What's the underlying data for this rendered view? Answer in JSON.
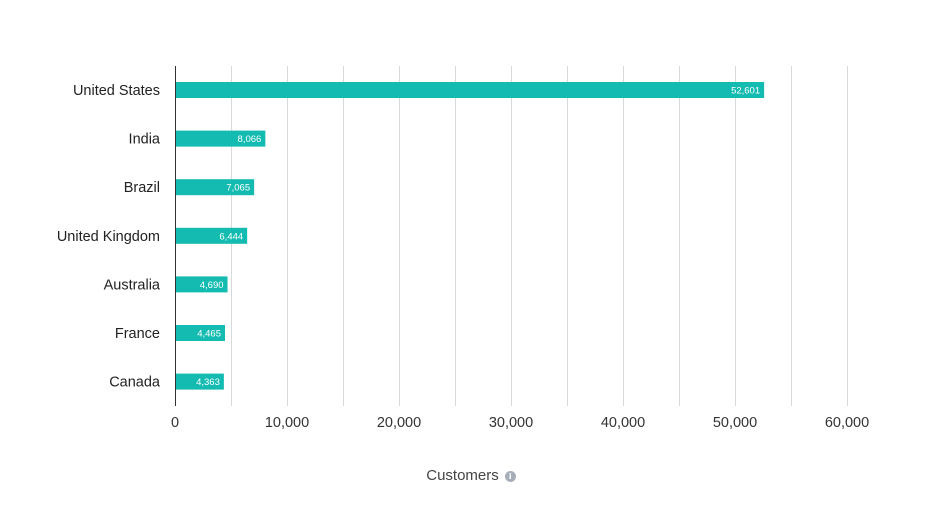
{
  "chart_data": {
    "type": "bar",
    "orientation": "horizontal",
    "categories": [
      "United States",
      "India",
      "Brazil",
      "United Kingdom",
      "Australia",
      "France",
      "Canada"
    ],
    "values": [
      52601,
      8066,
      7065,
      6444,
      4690,
      4465,
      4363
    ],
    "value_labels": [
      "52,601",
      "8,066",
      "7,065",
      "6,444",
      "4,690",
      "4,465",
      "4,363"
    ],
    "xlabel": "Customers",
    "xlim": [
      0,
      60000
    ],
    "x_ticks": [
      0,
      10000,
      20000,
      30000,
      40000,
      50000,
      60000
    ],
    "x_tick_labels": [
      "0",
      "10,000",
      "20,000",
      "30,000",
      "40,000",
      "50,000",
      "60,000"
    ],
    "grid": true,
    "minor_grid": true,
    "legend": "none"
  },
  "colors": {
    "bar": "#14bbb0",
    "grid": "#d9d9d9",
    "axis": "#333333",
    "info_icon": "#a7aeb9"
  },
  "icons": {
    "xlabel_info": "info-icon"
  }
}
